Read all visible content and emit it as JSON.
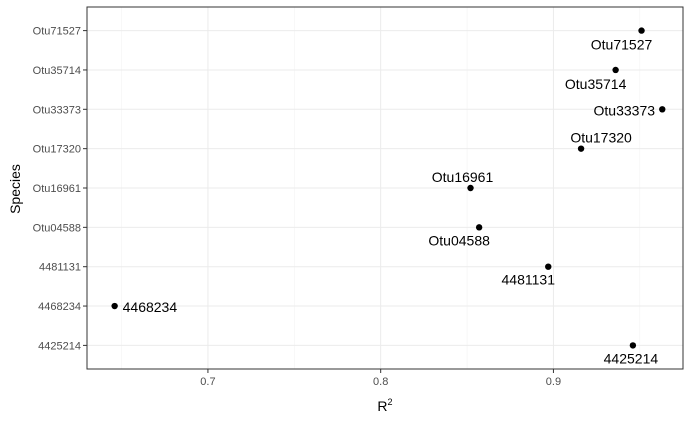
{
  "chart_data": {
    "type": "scatter",
    "xlabel": "R",
    "xlabel_superscript": "2",
    "ylabel": "Species",
    "xlim": [
      0.63,
      0.975
    ],
    "x_ticks": [
      0.7,
      0.8,
      0.9
    ],
    "x_tick_labels": [
      "0.7",
      "0.8",
      "0.9"
    ],
    "categories": [
      "4425214",
      "4468234",
      "4481131",
      "Otu04588",
      "Otu16961",
      "Otu17320",
      "Otu33373",
      "Otu35714",
      "Otu71527"
    ],
    "grid": true,
    "points": [
      {
        "species": "4425214",
        "x": 0.946,
        "label": "4425214"
      },
      {
        "species": "4468234",
        "x": 0.646,
        "label": "4468234"
      },
      {
        "species": "4481131",
        "x": 0.897,
        "label": "4481131"
      },
      {
        "species": "Otu04588",
        "x": 0.857,
        "label": "Otu04588"
      },
      {
        "species": "Otu16961",
        "x": 0.852,
        "label": "Otu16961"
      },
      {
        "species": "Otu17320",
        "x": 0.916,
        "label": "Otu17320"
      },
      {
        "species": "Otu33373",
        "x": 0.963,
        "label": "Otu33373"
      },
      {
        "species": "Otu35714",
        "x": 0.936,
        "label": "Otu35714"
      },
      {
        "species": "Otu71527",
        "x": 0.951,
        "label": "Otu71527"
      }
    ]
  }
}
